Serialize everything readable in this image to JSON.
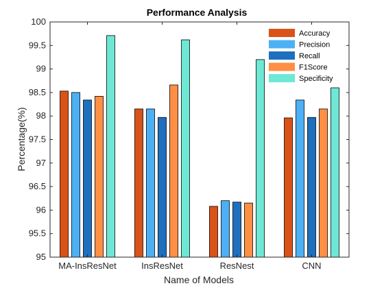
{
  "chart_data": {
    "type": "bar",
    "title": "Performance Analysis",
    "xlabel": "Name of Models",
    "ylabel": "Percentage(%)",
    "ylim": [
      95,
      100
    ],
    "yticks": [
      "95",
      "95.5",
      "96",
      "96.5",
      "97",
      "97.5",
      "98",
      "98.5",
      "99",
      "99.5",
      "100"
    ],
    "categories": [
      "MA-InsResNet",
      "InsResNet",
      "ResNest",
      "CNN"
    ],
    "legend_position": "top-right",
    "series": [
      {
        "name": "Accuracy",
        "color": "#D95319",
        "values": [
          98.53,
          98.15,
          96.08,
          97.96
        ]
      },
      {
        "name": "Precision",
        "color": "#4DB0F5",
        "values": [
          98.5,
          98.15,
          96.2,
          98.34
        ]
      },
      {
        "name": "Recall",
        "color": "#1F6FBF",
        "values": [
          98.34,
          97.97,
          96.17,
          97.97
        ]
      },
      {
        "name": "F1Score",
        "color": "#FF8F45",
        "values": [
          98.42,
          98.66,
          96.15,
          98.15
        ]
      },
      {
        "name": "Specificity",
        "color": "#6EE8D4",
        "values": [
          99.71,
          99.62,
          99.2,
          98.6
        ]
      }
    ]
  }
}
